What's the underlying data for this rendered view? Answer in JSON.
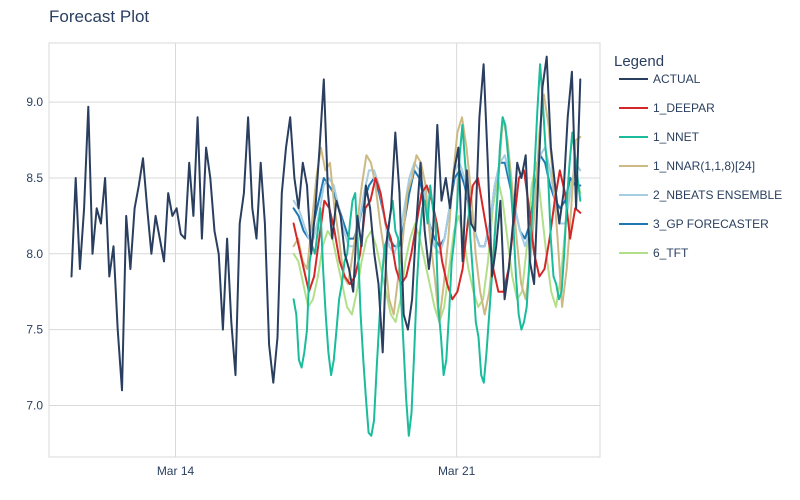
{
  "chart_data": {
    "type": "line",
    "title": "Forecast Plot",
    "xlabel": "",
    "ylabel": "",
    "x_range_days": [
      0,
      19.6
    ],
    "ylim": [
      6.66,
      9.39
    ],
    "x_ticks": [
      {
        "label": "Mar 14",
        "day": 4.5
      },
      {
        "label": "Mar 21",
        "day": 14.5
      }
    ],
    "y_ticks": [
      {
        "label": "7.0",
        "value": 7.0
      },
      {
        "label": "7.5",
        "value": 7.5
      },
      {
        "label": "8.0",
        "value": 8.0
      },
      {
        "label": "8.5",
        "value": 8.5
      },
      {
        "label": "9.0",
        "value": 9.0
      }
    ],
    "grid": true,
    "legend_position": "right",
    "legend": {
      "title": "Legend"
    },
    "series": [
      {
        "name": "ACTUAL",
        "color": "#2a3f5f",
        "x_start": 0.8,
        "x_end": 18.9,
        "values": [
          7.85,
          8.5,
          7.9,
          8.3,
          8.97,
          8.0,
          8.3,
          8.2,
          8.5,
          7.85,
          8.05,
          7.5,
          7.1,
          8.25,
          7.9,
          8.3,
          8.45,
          8.63,
          8.3,
          8.0,
          8.25,
          8.1,
          7.95,
          8.4,
          8.25,
          8.3,
          8.13,
          8.1,
          8.6,
          8.25,
          8.9,
          8.1,
          8.7,
          8.5,
          8.15,
          8.0,
          7.5,
          8.1,
          7.55,
          7.2,
          8.2,
          8.4,
          8.9,
          8.3,
          8.1,
          8.6,
          8.2,
          7.4,
          7.15,
          7.45,
          8.4,
          8.7,
          8.9,
          8.5,
          8.3,
          8.6,
          8.45,
          8.0,
          8.3,
          8.7,
          9.15,
          8.4,
          8.1,
          8.35,
          8.25,
          8.0,
          7.9,
          7.75,
          8.25,
          8.05,
          8.45,
          8.3,
          8.0,
          7.8,
          7.35,
          8.1,
          8.3,
          8.8,
          8.4,
          7.6,
          7.5,
          7.7,
          8.2,
          8.6,
          8.15,
          7.9,
          8.15,
          8.85,
          8.35,
          8.5,
          8.3,
          8.55,
          8.7,
          7.95,
          8.55,
          8.2,
          8.15,
          8.9,
          9.25,
          8.6,
          7.85,
          8.05,
          8.35,
          7.7,
          7.9,
          8.2,
          8.6,
          8.5,
          8.65,
          7.95,
          7.8,
          8.5,
          9.1,
          9.3,
          8.7,
          8.45,
          8.2,
          8.4,
          8.9,
          9.2,
          8.3,
          9.15
        ]
      },
      {
        "name": "1_DEEPAR",
        "color": "#d62728",
        "x_start": 8.7,
        "x_end": 18.9,
        "values": [
          8.2,
          8.05,
          7.9,
          7.75,
          7.85,
          8.1,
          8.35,
          8.3,
          8.15,
          7.95,
          7.85,
          7.8,
          7.85,
          8.0,
          8.3,
          8.35,
          8.5,
          8.4,
          8.2,
          8.1,
          7.9,
          7.8,
          7.85,
          8.0,
          8.2,
          8.4,
          8.45,
          8.35,
          8.2,
          7.95,
          7.8,
          7.7,
          7.75,
          7.9,
          8.2,
          8.45,
          8.5,
          8.3,
          8.1,
          7.9,
          7.75,
          7.75,
          7.9,
          8.2,
          8.5,
          8.55,
          8.3,
          8.0,
          7.85,
          7.9,
          8.1,
          8.35,
          8.55,
          8.4,
          8.1,
          8.3,
          8.27
        ]
      },
      {
        "name": "1_NNET",
        "color": "#1abc9c",
        "x_start": 8.7,
        "x_end": 18.9,
        "values": [
          7.7,
          7.6,
          7.3,
          7.25,
          7.35,
          7.5,
          7.95,
          8.05,
          8.0,
          8.15,
          8.3,
          7.9,
          7.6,
          7.35,
          7.2,
          7.3,
          7.5,
          7.7,
          7.8,
          7.95,
          8.0,
          8.2,
          8.35,
          8.4,
          8.05,
          7.6,
          7.3,
          7.05,
          6.82,
          6.8,
          6.9,
          7.25,
          7.55,
          7.85,
          8.05,
          8.1,
          8.25,
          8.35,
          8.15,
          8.1,
          7.75,
          7.4,
          7.05,
          6.8,
          6.95,
          7.35,
          7.8,
          8.1,
          8.3,
          8.35,
          8.2,
          8.45,
          8.3,
          8.2,
          7.65,
          7.45,
          7.2,
          7.3,
          7.6,
          7.95,
          8.1,
          8.3,
          8.65,
          8.85,
          8.6,
          8.4,
          8.1,
          7.85,
          7.55,
          7.45,
          7.2,
          7.15,
          7.35,
          7.6,
          7.85,
          8.1,
          8.35,
          8.7,
          8.9,
          8.85,
          8.65,
          8.45,
          8.2,
          7.85,
          7.6,
          7.5,
          7.55,
          7.65,
          7.95,
          8.25,
          8.6,
          8.95,
          9.25,
          9.0,
          8.7,
          8.5,
          8.1,
          7.85,
          7.8,
          7.7,
          7.75,
          8.0,
          8.35,
          8.6,
          8.8,
          8.65,
          8.5,
          8.35
        ]
      },
      {
        "name": "1_NNAR(1,1,8)[24]",
        "color": "#cdb984",
        "x_start": 8.7,
        "x_end": 18.9,
        "values": [
          8.05,
          8.1,
          7.95,
          7.9,
          8.2,
          8.5,
          8.7,
          8.55,
          8.6,
          8.3,
          8.1,
          7.85,
          7.8,
          8.0,
          8.2,
          8.45,
          8.65,
          8.6,
          8.45,
          8.2,
          8.0,
          7.7,
          7.6,
          7.85,
          8.1,
          8.4,
          8.5,
          8.65,
          8.6,
          8.45,
          8.1,
          7.85,
          7.55,
          7.8,
          8.1,
          8.5,
          8.8,
          8.9,
          8.7,
          8.4,
          8.0,
          7.75,
          7.6,
          7.75,
          8.05,
          8.5,
          8.9,
          8.75,
          8.45,
          8.1,
          7.8,
          7.7,
          7.95,
          8.3,
          8.8,
          9.05,
          8.85,
          8.5,
          8.1,
          7.65,
          7.9,
          8.3,
          8.75,
          8.77
        ]
      },
      {
        "name": "2_NBEATS ENSEMBLE",
        "color": "#a6cee3",
        "x_start": 8.7,
        "x_end": 18.9,
        "values": [
          8.35,
          8.3,
          8.2,
          8.1,
          8.1,
          8.25,
          8.45,
          8.5,
          8.45,
          8.3,
          8.15,
          8.05,
          8.05,
          8.2,
          8.4,
          8.55,
          8.55,
          8.45,
          8.25,
          8.05,
          8.0,
          8.1,
          8.3,
          8.5,
          8.6,
          8.55,
          8.4,
          8.2,
          8.05,
          8.0,
          8.1,
          8.3,
          8.55,
          8.6,
          8.5,
          8.3,
          8.15,
          8.05,
          8.05,
          8.2,
          8.45,
          8.6,
          8.65,
          8.5,
          8.3,
          8.15,
          8.05,
          8.15,
          8.4,
          8.65,
          8.7,
          8.55,
          8.35,
          8.2,
          8.2,
          8.4,
          8.6,
          8.55
        ]
      },
      {
        "name": "3_GP FORECASTER",
        "color": "#1f77b4",
        "x_start": 8.7,
        "x_end": 18.9,
        "values": [
          8.3,
          8.25,
          8.15,
          8.1,
          8.2,
          8.35,
          8.5,
          8.45,
          8.4,
          8.3,
          8.2,
          8.1,
          8.1,
          8.2,
          8.35,
          8.45,
          8.5,
          8.4,
          8.25,
          8.1,
          8.05,
          8.05,
          8.2,
          8.4,
          8.55,
          8.5,
          8.35,
          8.2,
          8.1,
          8.05,
          8.1,
          8.3,
          8.5,
          8.55,
          8.45,
          8.3,
          8.15,
          8.05,
          8.05,
          8.2,
          8.45,
          8.6,
          8.6,
          8.45,
          8.3,
          8.15,
          8.1,
          8.2,
          8.45,
          8.65,
          8.6,
          8.45,
          8.35,
          8.3,
          8.35,
          8.5,
          8.45,
          8.45
        ]
      },
      {
        "name": "6_TFT",
        "color": "#b2df8a",
        "x_start": 8.7,
        "x_end": 18.9,
        "values": [
          8.0,
          7.95,
          7.8,
          7.65,
          7.7,
          7.85,
          8.05,
          8.15,
          8.1,
          7.95,
          7.8,
          7.65,
          7.6,
          7.75,
          7.95,
          8.1,
          8.15,
          8.05,
          7.9,
          7.75,
          7.6,
          7.55,
          7.7,
          7.95,
          8.1,
          8.2,
          8.1,
          7.95,
          7.8,
          7.65,
          7.55,
          7.65,
          7.9,
          8.15,
          8.25,
          8.1,
          7.9,
          7.75,
          7.65,
          7.7,
          7.95,
          8.3,
          8.5,
          8.35,
          8.1,
          7.85,
          7.7,
          7.75,
          8.05,
          8.45,
          8.6,
          8.3,
          8.0,
          7.75,
          7.65,
          7.85,
          8.2,
          8.45,
          8.55,
          8.4
        ]
      }
    ]
  }
}
